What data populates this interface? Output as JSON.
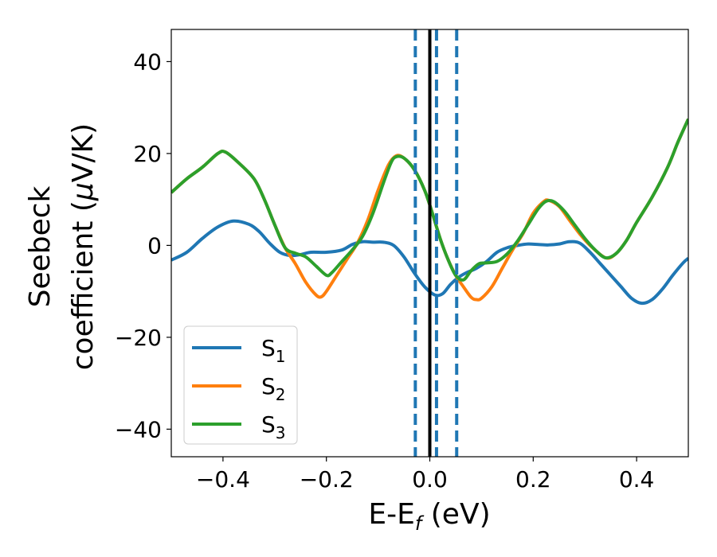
{
  "chart_data": {
    "type": "line",
    "xlabel": "E-E",
    "xlabel_sub": "f",
    "xlabel_unit": " (eV)",
    "ylabel_line1": "Seebeck",
    "ylabel_line2": "coefficient  (",
    "ylabel_mu": "μ",
    "ylabel_unit": "V/K)",
    "xlim": [
      -0.5,
      0.5
    ],
    "ylim": [
      -46,
      47
    ],
    "xticks": [
      -0.4,
      -0.2,
      0.0,
      0.2,
      0.4
    ],
    "xtick_labels": [
      "−0.4",
      "−0.2",
      "0.0",
      "0.2",
      "0.4"
    ],
    "yticks": [
      40,
      20,
      0,
      -20,
      -40
    ],
    "ytick_labels": [
      "40",
      "20",
      "0",
      "−20",
      "−40"
    ],
    "grid": false,
    "legend_position": "lower-left",
    "vertical_lines": [
      {
        "x": -0.028,
        "style": "dashed",
        "color": "#1f77b4"
      },
      {
        "x": 0.013,
        "style": "dashed",
        "color": "#1f77b4"
      },
      {
        "x": 0.052,
        "style": "dashed",
        "color": "#1f77b4"
      },
      {
        "x": 0.0,
        "style": "solid",
        "color": "#000000"
      }
    ],
    "series": [
      {
        "name": "S",
        "sub": "1",
        "color": "#1f77b4",
        "points": [
          [
            -0.5,
            -3.2
          ],
          [
            -0.47,
            -1.5
          ],
          [
            -0.44,
            1.5
          ],
          [
            -0.41,
            4.0
          ],
          [
            -0.38,
            5.3
          ],
          [
            -0.35,
            4.6
          ],
          [
            -0.33,
            3.0
          ],
          [
            -0.31,
            0.5
          ],
          [
            -0.29,
            -1.5
          ],
          [
            -0.27,
            -2.2
          ],
          [
            -0.25,
            -2.0
          ],
          [
            -0.23,
            -1.5
          ],
          [
            -0.2,
            -1.5
          ],
          [
            -0.17,
            -1.0
          ],
          [
            -0.15,
            0.2
          ],
          [
            -0.13,
            0.8
          ],
          [
            -0.11,
            0.7
          ],
          [
            -0.09,
            0.7
          ],
          [
            -0.07,
            0.0
          ],
          [
            -0.05,
            -2.5
          ],
          [
            -0.03,
            -6.0
          ],
          [
            -0.01,
            -9.0
          ],
          [
            0.01,
            -10.8
          ],
          [
            0.025,
            -10.5
          ],
          [
            0.04,
            -8.5
          ],
          [
            0.055,
            -7.0
          ],
          [
            0.07,
            -6.0
          ],
          [
            0.09,
            -5.0
          ],
          [
            0.11,
            -3.5
          ],
          [
            0.13,
            -1.5
          ],
          [
            0.15,
            -0.5
          ],
          [
            0.17,
            0.0
          ],
          [
            0.19,
            0.3
          ],
          [
            0.21,
            0.2
          ],
          [
            0.23,
            0.1
          ],
          [
            0.25,
            0.3
          ],
          [
            0.27,
            0.8
          ],
          [
            0.29,
            0.5
          ],
          [
            0.31,
            -1.5
          ],
          [
            0.33,
            -4.0
          ],
          [
            0.35,
            -6.5
          ],
          [
            0.37,
            -9.0
          ],
          [
            0.39,
            -11.5
          ],
          [
            0.41,
            -12.6
          ],
          [
            0.43,
            -11.8
          ],
          [
            0.45,
            -9.5
          ],
          [
            0.47,
            -6.5
          ],
          [
            0.49,
            -3.8
          ],
          [
            0.5,
            -2.8
          ]
        ]
      },
      {
        "name": "S",
        "sub": "2",
        "color": "#ff7f0e",
        "points": [
          [
            -0.5,
            11.5
          ],
          [
            -0.47,
            14.5
          ],
          [
            -0.44,
            17.0
          ],
          [
            -0.41,
            20.0
          ],
          [
            -0.395,
            20.3
          ],
          [
            -0.37,
            18.0
          ],
          [
            -0.34,
            14.5
          ],
          [
            -0.32,
            10.0
          ],
          [
            -0.3,
            4.5
          ],
          [
            -0.28,
            -0.5
          ],
          [
            -0.26,
            -4.0
          ],
          [
            -0.24,
            -8.0
          ],
          [
            -0.22,
            -10.8
          ],
          [
            -0.21,
            -11.2
          ],
          [
            -0.2,
            -10.0
          ],
          [
            -0.18,
            -6.5
          ],
          [
            -0.16,
            -3.0
          ],
          [
            -0.14,
            0.5
          ],
          [
            -0.12,
            5.5
          ],
          [
            -0.1,
            12.0
          ],
          [
            -0.08,
            17.5
          ],
          [
            -0.065,
            19.5
          ],
          [
            -0.05,
            19.0
          ],
          [
            -0.03,
            16.5
          ],
          [
            -0.01,
            12.0
          ],
          [
            0.005,
            7.0
          ],
          [
            0.02,
            1.5
          ],
          [
            0.035,
            -3.0
          ],
          [
            0.05,
            -6.5
          ],
          [
            0.065,
            -9.0
          ],
          [
            0.08,
            -11.3
          ],
          [
            0.09,
            -11.8
          ],
          [
            0.1,
            -11.5
          ],
          [
            0.12,
            -9.0
          ],
          [
            0.14,
            -5.0
          ],
          [
            0.16,
            -1.0
          ],
          [
            0.18,
            2.5
          ],
          [
            0.2,
            7.0
          ],
          [
            0.22,
            9.5
          ],
          [
            0.23,
            9.8
          ],
          [
            0.25,
            8.5
          ],
          [
            0.27,
            5.5
          ],
          [
            0.29,
            2.5
          ],
          [
            0.31,
            0.0
          ],
          [
            0.34,
            -2.7
          ],
          [
            0.36,
            -1.8
          ],
          [
            0.38,
            1.0
          ],
          [
            0.4,
            5.0
          ],
          [
            0.43,
            10.5
          ],
          [
            0.46,
            17.0
          ],
          [
            0.48,
            22.5
          ],
          [
            0.5,
            27.5
          ]
        ]
      },
      {
        "name": "S",
        "sub": "3",
        "color": "#2ca02c",
        "points": [
          [
            -0.5,
            11.5
          ],
          [
            -0.47,
            14.5
          ],
          [
            -0.44,
            17.0
          ],
          [
            -0.41,
            20.0
          ],
          [
            -0.395,
            20.3
          ],
          [
            -0.37,
            18.0
          ],
          [
            -0.34,
            14.5
          ],
          [
            -0.32,
            10.0
          ],
          [
            -0.3,
            4.5
          ],
          [
            -0.28,
            -0.5
          ],
          [
            -0.26,
            -1.7
          ],
          [
            -0.24,
            -2.5
          ],
          [
            -0.22,
            -4.5
          ],
          [
            -0.2,
            -6.5
          ],
          [
            -0.19,
            -6.0
          ],
          [
            -0.17,
            -3.5
          ],
          [
            -0.15,
            -1.0
          ],
          [
            -0.13,
            2.0
          ],
          [
            -0.11,
            7.0
          ],
          [
            -0.09,
            13.5
          ],
          [
            -0.075,
            18.0
          ],
          [
            -0.065,
            19.3
          ],
          [
            -0.05,
            19.0
          ],
          [
            -0.03,
            16.5
          ],
          [
            -0.01,
            12.0
          ],
          [
            0.005,
            7.0
          ],
          [
            0.02,
            1.5
          ],
          [
            0.035,
            -3.0
          ],
          [
            0.05,
            -6.5
          ],
          [
            0.065,
            -7.5
          ],
          [
            0.08,
            -5.5
          ],
          [
            0.095,
            -4.0
          ],
          [
            0.11,
            -3.8
          ],
          [
            0.13,
            -3.5
          ],
          [
            0.15,
            -1.8
          ],
          [
            0.17,
            1.0
          ],
          [
            0.19,
            4.5
          ],
          [
            0.21,
            8.0
          ],
          [
            0.225,
            9.6
          ],
          [
            0.24,
            9.5
          ],
          [
            0.26,
            7.5
          ],
          [
            0.28,
            4.5
          ],
          [
            0.3,
            1.5
          ],
          [
            0.32,
            -1.0
          ],
          [
            0.34,
            -2.7
          ],
          [
            0.36,
            -1.8
          ],
          [
            0.38,
            1.0
          ],
          [
            0.4,
            5.0
          ],
          [
            0.43,
            10.5
          ],
          [
            0.46,
            17.0
          ],
          [
            0.48,
            22.5
          ],
          [
            0.5,
            27.5
          ]
        ]
      }
    ]
  }
}
